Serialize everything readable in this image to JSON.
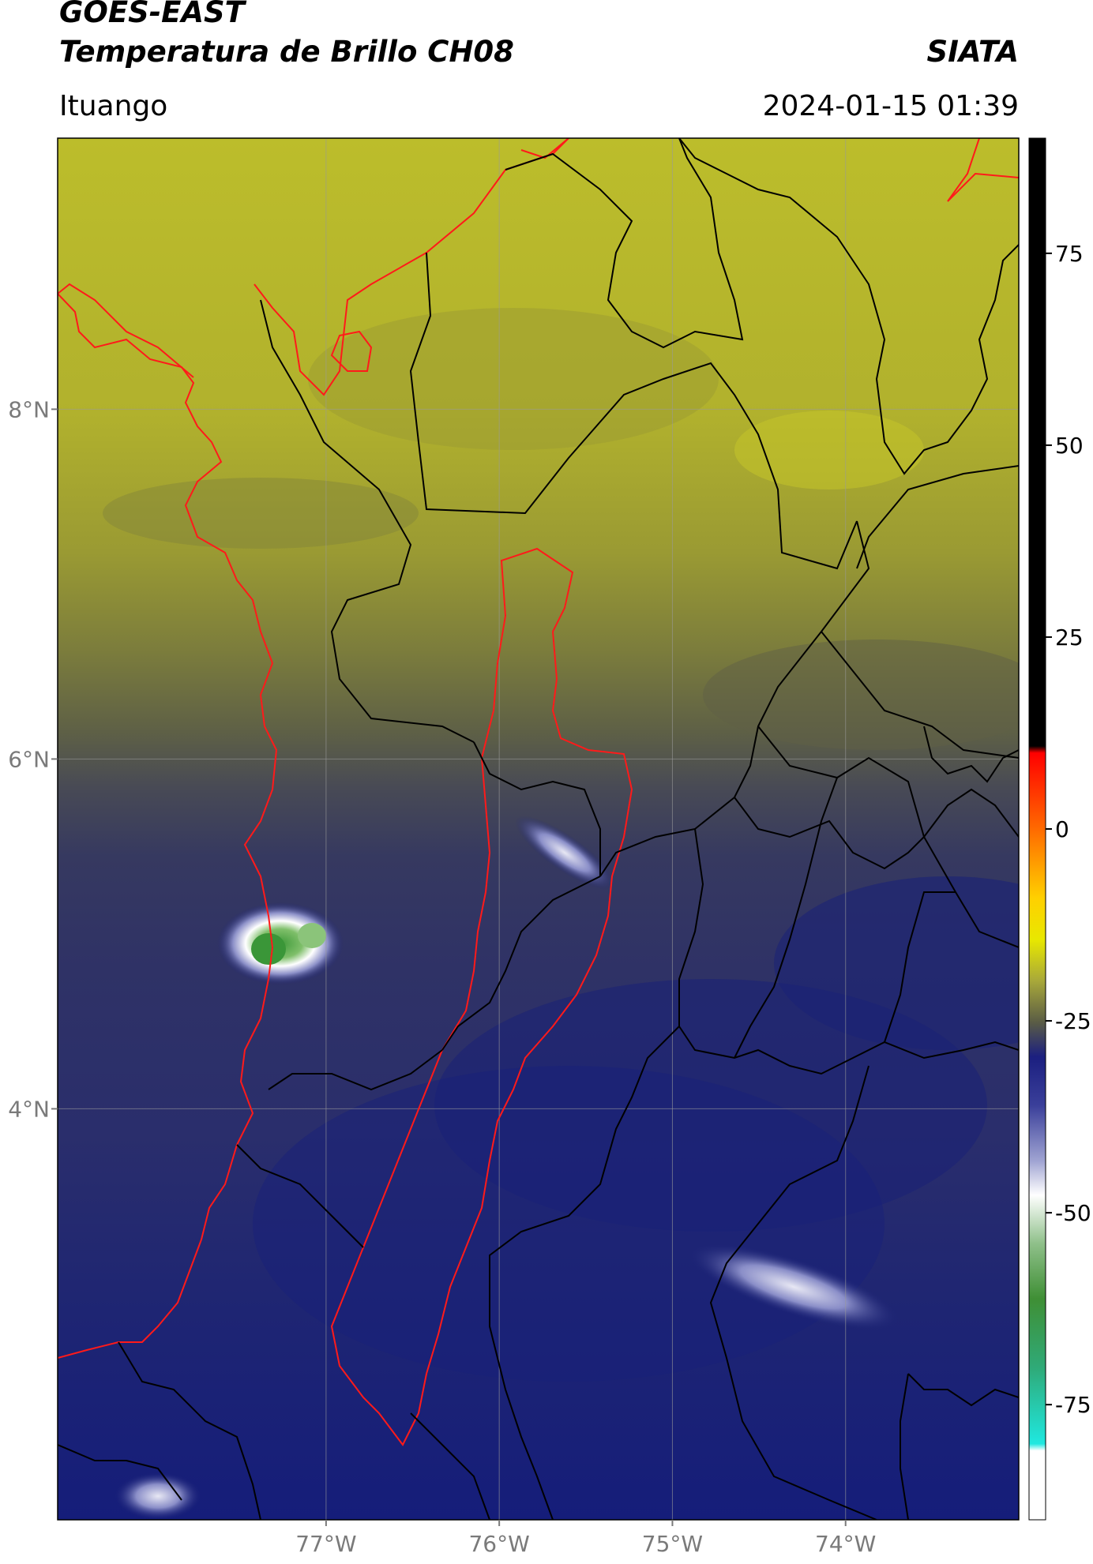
{
  "header": {
    "satellite": "GOES-EAST",
    "product": "Temperatura de Brillo CH08",
    "organization": "SIATA",
    "region": "Ituango",
    "timestamp": "2024-01-15 01:39"
  },
  "map": {
    "lon_range": [
      -78.55,
      -73.0
    ],
    "lat_range": [
      1.65,
      9.55
    ],
    "lat_ticks": [
      {
        "value": 8,
        "label": "8°N"
      },
      {
        "value": 6,
        "label": "6°N"
      },
      {
        "value": 4,
        "label": "4°N"
      }
    ],
    "lon_ticks": [
      {
        "value": -77,
        "label": "77°W"
      },
      {
        "value": -76,
        "label": "76°W"
      },
      {
        "value": -75,
        "label": "75°W"
      },
      {
        "value": -74,
        "label": "74°W"
      }
    ],
    "colors": {
      "warm_north": "#b7b82a",
      "mid": "#5a5c45",
      "cool_south": "#2f3266",
      "cold_southeast": "#1b2276",
      "coast_and_basin_outline": "#ff1a1a",
      "admin_boundaries": "#000000"
    }
  },
  "colorbar": {
    "range": [
      -90,
      90
    ],
    "ticks": [
      {
        "value": 75,
        "label": "75"
      },
      {
        "value": 50,
        "label": "50"
      },
      {
        "value": 25,
        "label": "25"
      },
      {
        "value": 0,
        "label": "0"
      },
      {
        "value": -25,
        "label": "-25"
      },
      {
        "value": -50,
        "label": "-50"
      },
      {
        "value": -75,
        "label": "-75"
      }
    ]
  }
}
